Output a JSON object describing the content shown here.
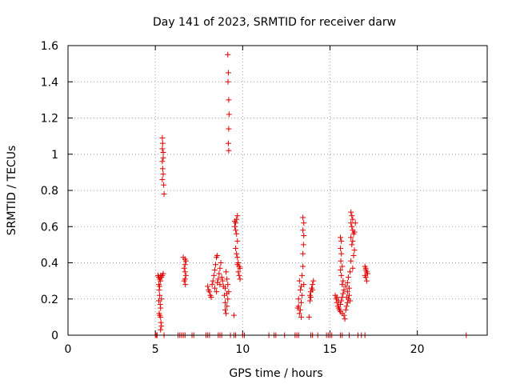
{
  "chart_data": {
    "type": "scatter",
    "title": "Day 141 of 2023, SRMTID for receiver darw",
    "xlabel": "GPS time / hours",
    "ylabel": "SRMTID / TECUs",
    "xlim": [
      0,
      24
    ],
    "ylim": [
      0,
      1.6
    ],
    "xticks": [
      0,
      5,
      10,
      15,
      20
    ],
    "xtick_labels": [
      "0",
      "5",
      "10",
      "15",
      "20"
    ],
    "yticks": [
      0,
      0.2,
      0.4,
      0.6,
      0.8,
      1.0,
      1.2,
      1.4,
      1.6
    ],
    "ytick_labels": [
      "0",
      "0.2",
      "0.4",
      "0.6",
      "0.8",
      "1",
      "1.2",
      "1.4",
      "1.6"
    ],
    "grid": true,
    "marker": "+",
    "color": "#e00000",
    "series": [
      {
        "name": "SRMTID",
        "points": [
          [
            5.0,
            0.0
          ],
          [
            5.05,
            0.0
          ],
          [
            5.1,
            0.0
          ],
          [
            5.5,
            0.0
          ],
          [
            6.3,
            0.0
          ],
          [
            6.4,
            0.0
          ],
          [
            6.5,
            0.0
          ],
          [
            6.6,
            0.0
          ],
          [
            6.7,
            0.0
          ],
          [
            7.1,
            0.0
          ],
          [
            7.2,
            0.0
          ],
          [
            7.9,
            0.0
          ],
          [
            8.0,
            0.0
          ],
          [
            8.1,
            0.0
          ],
          [
            8.6,
            0.0
          ],
          [
            8.7,
            0.0
          ],
          [
            8.8,
            0.0
          ],
          [
            9.3,
            0.0
          ],
          [
            9.5,
            0.0
          ],
          [
            9.6,
            0.0
          ],
          [
            10.0,
            0.0
          ],
          [
            10.1,
            0.0
          ],
          [
            11.5,
            0.0
          ],
          [
            11.8,
            0.0
          ],
          [
            11.9,
            0.0
          ],
          [
            12.4,
            0.0
          ],
          [
            13.0,
            0.0
          ],
          [
            13.1,
            0.0
          ],
          [
            13.2,
            0.0
          ],
          [
            13.9,
            0.0
          ],
          [
            14.0,
            0.0
          ],
          [
            14.3,
            0.0
          ],
          [
            14.8,
            0.0
          ],
          [
            14.9,
            0.0
          ],
          [
            15.0,
            0.0
          ],
          [
            15.1,
            0.0
          ],
          [
            15.6,
            0.0
          ],
          [
            15.7,
            0.0
          ],
          [
            16.1,
            0.0
          ],
          [
            16.6,
            0.0
          ],
          [
            16.8,
            0.0
          ],
          [
            17.0,
            0.0
          ],
          [
            22.8,
            0.0
          ],
          [
            5.15,
            0.33
          ],
          [
            5.2,
            0.32
          ],
          [
            5.25,
            0.31
          ],
          [
            5.3,
            0.33
          ],
          [
            5.35,
            0.32
          ],
          [
            5.4,
            0.33
          ],
          [
            5.45,
            0.34
          ],
          [
            5.2,
            0.28
          ],
          [
            5.22,
            0.25
          ],
          [
            5.25,
            0.22
          ],
          [
            5.2,
            0.19
          ],
          [
            5.28,
            0.17
          ],
          [
            5.3,
            0.15
          ],
          [
            5.22,
            0.12
          ],
          [
            5.25,
            0.11
          ],
          [
            5.3,
            0.1
          ],
          [
            5.32,
            0.07
          ],
          [
            5.35,
            0.05
          ],
          [
            5.3,
            0.03
          ],
          [
            5.25,
            0.27
          ],
          [
            5.3,
            0.3
          ],
          [
            5.35,
            0.2
          ],
          [
            5.4,
            1.09
          ],
          [
            5.42,
            1.06
          ],
          [
            5.4,
            1.03
          ],
          [
            5.45,
            1.01
          ],
          [
            5.45,
            0.98
          ],
          [
            5.4,
            0.96
          ],
          [
            5.42,
            0.92
          ],
          [
            5.45,
            0.89
          ],
          [
            5.4,
            0.86
          ],
          [
            5.48,
            0.83
          ],
          [
            5.5,
            0.78
          ],
          [
            6.6,
            0.43
          ],
          [
            6.7,
            0.42
          ],
          [
            6.75,
            0.41
          ],
          [
            6.7,
            0.39
          ],
          [
            6.65,
            0.37
          ],
          [
            6.7,
            0.35
          ],
          [
            6.75,
            0.33
          ],
          [
            6.7,
            0.31
          ],
          [
            6.65,
            0.3
          ],
          [
            6.72,
            0.28
          ],
          [
            8.0,
            0.27
          ],
          [
            8.05,
            0.25
          ],
          [
            8.1,
            0.24
          ],
          [
            8.15,
            0.22
          ],
          [
            8.2,
            0.21
          ],
          [
            8.25,
            0.28
          ],
          [
            8.3,
            0.3
          ],
          [
            8.35,
            0.33
          ],
          [
            8.4,
            0.36
          ],
          [
            8.45,
            0.39
          ],
          [
            8.5,
            0.43
          ],
          [
            8.55,
            0.44
          ],
          [
            8.4,
            0.26
          ],
          [
            8.5,
            0.24
          ],
          [
            8.55,
            0.29
          ],
          [
            8.6,
            0.31
          ],
          [
            8.65,
            0.34
          ],
          [
            8.7,
            0.37
          ],
          [
            8.75,
            0.4
          ],
          [
            8.7,
            0.28
          ],
          [
            8.8,
            0.32
          ],
          [
            8.85,
            0.3
          ],
          [
            8.9,
            0.27
          ],
          [
            8.95,
            0.22
          ],
          [
            9.0,
            0.18
          ],
          [
            9.0,
            0.14
          ],
          [
            9.05,
            0.12
          ],
          [
            9.1,
            0.16
          ],
          [
            9.15,
            0.2
          ],
          [
            9.2,
            0.24
          ],
          [
            9.1,
            0.23
          ],
          [
            9.05,
            0.35
          ],
          [
            9.1,
            0.31
          ],
          [
            9.15,
            0.28
          ],
          [
            9.0,
            0.26
          ],
          [
            9.15,
            1.55
          ],
          [
            9.18,
            1.45
          ],
          [
            9.16,
            1.4
          ],
          [
            9.2,
            1.3
          ],
          [
            9.22,
            1.22
          ],
          [
            9.2,
            1.14
          ],
          [
            9.18,
            1.06
          ],
          [
            9.2,
            1.02
          ],
          [
            9.5,
            0.11
          ],
          [
            9.55,
            0.6
          ],
          [
            9.6,
            0.62
          ],
          [
            9.65,
            0.64
          ],
          [
            9.7,
            0.66
          ],
          [
            9.6,
            0.58
          ],
          [
            9.65,
            0.56
          ],
          [
            9.55,
            0.63
          ],
          [
            9.7,
            0.52
          ],
          [
            9.6,
            0.48
          ],
          [
            9.65,
            0.45
          ],
          [
            9.7,
            0.43
          ],
          [
            9.75,
            0.4
          ],
          [
            9.8,
            0.38
          ],
          [
            9.85,
            0.37
          ],
          [
            9.75,
            0.35
          ],
          [
            9.8,
            0.33
          ],
          [
            9.85,
            0.31
          ],
          [
            9.7,
            0.39
          ],
          [
            13.15,
            0.15
          ],
          [
            13.2,
            0.16
          ],
          [
            13.25,
            0.12
          ],
          [
            13.3,
            0.14
          ],
          [
            13.35,
            0.18
          ],
          [
            13.4,
            0.22
          ],
          [
            13.3,
            0.25
          ],
          [
            13.35,
            0.27
          ],
          [
            13.25,
            0.3
          ],
          [
            13.4,
            0.33
          ],
          [
            13.45,
            0.38
          ],
          [
            13.45,
            0.65
          ],
          [
            13.5,
            0.62
          ],
          [
            13.45,
            0.58
          ],
          [
            13.5,
            0.55
          ],
          [
            13.48,
            0.5
          ],
          [
            13.45,
            0.45
          ],
          [
            13.2,
            0.2
          ],
          [
            13.35,
            0.1
          ],
          [
            13.5,
            0.28
          ],
          [
            13.8,
            0.1
          ],
          [
            13.85,
            0.22
          ],
          [
            13.9,
            0.24
          ],
          [
            13.95,
            0.26
          ],
          [
            14.0,
            0.28
          ],
          [
            14.05,
            0.3
          ],
          [
            13.9,
            0.21
          ],
          [
            14.0,
            0.25
          ],
          [
            13.85,
            0.19
          ],
          [
            15.3,
            0.22
          ],
          [
            15.35,
            0.2
          ],
          [
            15.4,
            0.18
          ],
          [
            15.45,
            0.16
          ],
          [
            15.5,
            0.15
          ],
          [
            15.55,
            0.14
          ],
          [
            15.6,
            0.17
          ],
          [
            15.65,
            0.19
          ],
          [
            15.7,
            0.21
          ],
          [
            15.75,
            0.23
          ],
          [
            15.8,
            0.25
          ],
          [
            15.4,
            0.21
          ],
          [
            15.5,
            0.19
          ],
          [
            15.6,
            0.13
          ],
          [
            15.7,
            0.12
          ],
          [
            15.8,
            0.11
          ],
          [
            15.85,
            0.09
          ],
          [
            15.6,
            0.54
          ],
          [
            15.65,
            0.52
          ],
          [
            15.6,
            0.48
          ],
          [
            15.65,
            0.45
          ],
          [
            15.62,
            0.41
          ],
          [
            15.7,
            0.38
          ],
          [
            15.65,
            0.33
          ],
          [
            15.7,
            0.28
          ],
          [
            15.6,
            0.36
          ],
          [
            15.75,
            0.3
          ],
          [
            15.9,
            0.14
          ],
          [
            15.95,
            0.16
          ],
          [
            16.0,
            0.18
          ],
          [
            16.05,
            0.2
          ],
          [
            16.1,
            0.22
          ],
          [
            16.0,
            0.24
          ],
          [
            15.9,
            0.27
          ],
          [
            16.0,
            0.29
          ],
          [
            16.05,
            0.32
          ],
          [
            15.95,
            0.21
          ],
          [
            16.1,
            0.26
          ],
          [
            16.15,
            0.19
          ],
          [
            16.2,
            0.68
          ],
          [
            16.25,
            0.66
          ],
          [
            16.3,
            0.64
          ],
          [
            16.2,
            0.62
          ],
          [
            16.25,
            0.6
          ],
          [
            16.3,
            0.58
          ],
          [
            16.35,
            0.56
          ],
          [
            16.2,
            0.54
          ],
          [
            16.3,
            0.52
          ],
          [
            16.25,
            0.5
          ],
          [
            16.4,
            0.47
          ],
          [
            16.35,
            0.44
          ],
          [
            16.2,
            0.41
          ],
          [
            16.3,
            0.37
          ],
          [
            16.45,
            0.62
          ],
          [
            16.4,
            0.57
          ],
          [
            16.15,
            0.35
          ],
          [
            17.0,
            0.38
          ],
          [
            17.05,
            0.36
          ],
          [
            17.1,
            0.35
          ],
          [
            17.0,
            0.33
          ],
          [
            17.05,
            0.32
          ],
          [
            17.1,
            0.3
          ],
          [
            17.15,
            0.34
          ],
          [
            17.05,
            0.37
          ]
        ]
      }
    ]
  }
}
